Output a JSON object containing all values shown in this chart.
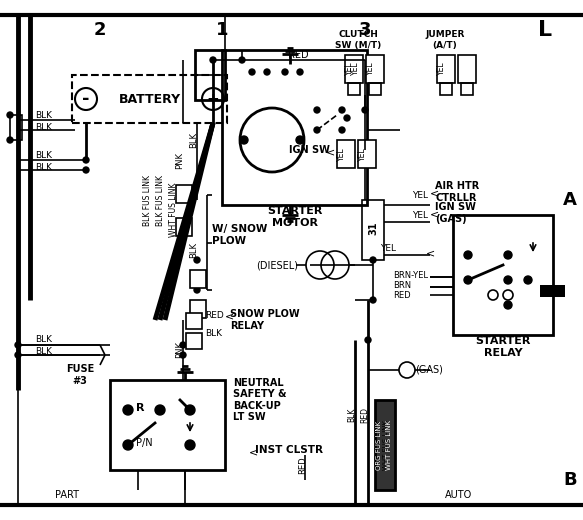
{
  "bg_color": "#ffffff",
  "fig_width": 5.83,
  "fig_height": 5.2,
  "dpi": 100,
  "labels": {
    "section_2": "2",
    "section_1": "1",
    "section_3": "3",
    "section_L": "L",
    "section_A": "A",
    "section_B": "B",
    "battery": "BATTERY",
    "starter_motor": "STARTER\nMOTOR",
    "starter_relay": "STARTER\nRELAY",
    "neutral_safety": "NEUTRAL\nSAFETY &\nBACK-UP\nLT SW",
    "snow_plow_relay": "SNOW PLOW\nRELAY",
    "w_snow_plow": "W/ SNOW\nPLOW",
    "clutch_sw": "CLUTCH\nSW (M/T)",
    "jumper": "JUMPER\n(A/T)",
    "ign_sw": "IGN SW",
    "air_htr": "AIR HTR\nCTRLLR",
    "ign_sw_gas": "IGN SW\n(GAS)",
    "diesel": "(DIESEL)",
    "gas": "(GAS)",
    "inst_clstr": "INST CLSTR",
    "fuse_3": "FUSE\n#3",
    "blk_fus_link": "BLK FUS LINK",
    "wht_fus_link": "WHT FUS LINK",
    "org_fus_link": "ORG FUS LINK",
    "blk": "BLK",
    "pnk": "PNK",
    "red": "RED",
    "yel": "YEL",
    "brn": "BRN",
    "brn_yel": "BRN-YEL",
    "auto": "AUTO",
    "part": "PART"
  }
}
